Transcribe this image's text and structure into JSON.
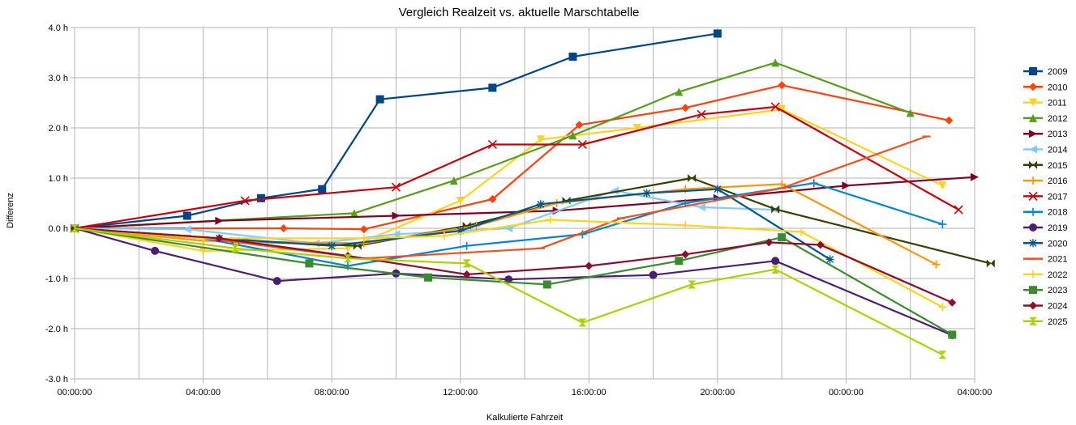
{
  "chart_data": {
    "type": "line",
    "title": "Vergleich Realzeit vs. aktuelle Marschtabelle",
    "xlabel": "Kalkulierte Fahrzeit",
    "ylabel": "Differenz",
    "x_unit": "hours",
    "xlim": [
      0,
      28
    ],
    "ylim": [
      -3,
      4
    ],
    "x_ticks": [
      {
        "value": 0,
        "label": "00:00:00"
      },
      {
        "value": 4,
        "label": "04:00:00"
      },
      {
        "value": 8,
        "label": "08:00:00"
      },
      {
        "value": 12,
        "label": "12:00:00"
      },
      {
        "value": 16,
        "label": "16:00:00"
      },
      {
        "value": 20,
        "label": "20:00:00"
      },
      {
        "value": 24,
        "label": "00:00:00"
      },
      {
        "value": 28,
        "label": "04:00:00"
      }
    ],
    "y_ticks": [
      {
        "value": 4,
        "label": "4.0 h"
      },
      {
        "value": 3,
        "label": "3.0 h"
      },
      {
        "value": 2,
        "label": "2.0 h"
      },
      {
        "value": 1,
        "label": "1.0 h"
      },
      {
        "value": 0,
        "label": "0.0 h"
      },
      {
        "value": -1,
        "label": "-1.0 h"
      },
      {
        "value": -2,
        "label": "-2.0 h"
      },
      {
        "value": -3,
        "label": "-3.0 h"
      }
    ],
    "grid": true,
    "legend_position": "right",
    "series": [
      {
        "name": "2009",
        "color": "#004586",
        "marker": "square",
        "x": [
          0,
          3.5,
          5.8,
          7.7,
          9.5,
          13.0,
          15.5,
          20.0
        ],
        "y": [
          0,
          0.25,
          0.6,
          0.78,
          2.57,
          2.8,
          3.42,
          3.88
        ]
      },
      {
        "name": "2010",
        "color": "#ff420e",
        "marker": "diamond",
        "x": [
          0,
          6.5,
          9.0,
          13.0,
          15.7,
          19.0,
          22.0,
          27.2
        ],
        "y": [
          0,
          0.0,
          -0.02,
          0.58,
          2.06,
          2.4,
          2.85,
          2.15
        ]
      },
      {
        "name": "2011",
        "color": "#ffd320",
        "marker": "triangle-down",
        "x": [
          0,
          4.0,
          8.5,
          12.0,
          14.5,
          17.5,
          22.0,
          27.0
        ],
        "y": [
          0,
          -0.45,
          -0.4,
          0.55,
          1.77,
          2.0,
          2.37,
          0.85
        ]
      },
      {
        "name": "2012",
        "color": "#579d1c",
        "marker": "triangle-up",
        "x": [
          0,
          8.7,
          11.8,
          15.5,
          18.8,
          21.8,
          26.0
        ],
        "y": [
          0,
          0.3,
          0.95,
          1.85,
          2.72,
          3.3,
          2.3
        ]
      },
      {
        "name": "2013",
        "color": "#7e0021",
        "marker": "triangle-right",
        "x": [
          0,
          4.5,
          10.0,
          15.0,
          20.0,
          24.0,
          28.0
        ],
        "y": [
          0,
          0.15,
          0.25,
          0.35,
          0.6,
          0.85,
          1.02
        ]
      },
      {
        "name": "2014",
        "color": "#83caff",
        "marker": "triangle-left",
        "x": [
          0,
          3.5,
          7.5,
          10.0,
          13.5,
          16.8,
          19.5,
          21.8
        ],
        "y": [
          0,
          -0.02,
          -0.3,
          -0.12,
          0.0,
          0.75,
          0.42,
          0.37
        ]
      },
      {
        "name": "2015",
        "color": "#314004",
        "marker": "bowtie",
        "x": [
          0,
          5.0,
          8.8,
          12.2,
          15.3,
          19.2,
          21.8,
          28.5
        ],
        "y": [
          0,
          -0.25,
          -0.35,
          0.05,
          0.55,
          1.0,
          0.38,
          -0.7
        ]
      },
      {
        "name": "2016",
        "color": "#ff950e",
        "marker": "plus",
        "x": [
          0,
          4.0,
          9.0,
          12.5,
          15.0,
          19.0,
          22.0,
          26.8
        ],
        "y": [
          0,
          -0.25,
          -0.3,
          0.05,
          0.5,
          0.78,
          0.88,
          -0.72
        ]
      },
      {
        "name": "2017",
        "color": "#c5000b",
        "marker": "x",
        "x": [
          0,
          5.3,
          10.0,
          13.0,
          15.8,
          19.5,
          21.8,
          27.5
        ],
        "y": [
          0,
          0.55,
          0.82,
          1.67,
          1.67,
          2.27,
          2.42,
          0.37
        ]
      },
      {
        "name": "2018",
        "color": "#0084d1",
        "marker": "plus",
        "x": [
          0,
          4.0,
          8.5,
          12.2,
          15.8,
          19.0,
          23.0,
          27.0
        ],
        "y": [
          0,
          -0.2,
          -0.75,
          -0.35,
          -0.12,
          0.5,
          0.9,
          0.08
        ]
      },
      {
        "name": "2019",
        "color": "#4b1f6f",
        "marker": "circle",
        "x": [
          0,
          2.5,
          6.3,
          10.0,
          13.5,
          18.0,
          21.8,
          27.3
        ],
        "y": [
          0,
          -0.45,
          -1.05,
          -0.9,
          -1.02,
          -0.93,
          -0.65,
          -2.13
        ]
      },
      {
        "name": "2020",
        "color": "#00568a",
        "marker": "asterisk",
        "x": [
          0,
          4.5,
          8.0,
          12.0,
          14.5,
          17.8,
          20.0,
          23.5
        ],
        "y": [
          0,
          -0.2,
          -0.35,
          -0.05,
          0.48,
          0.7,
          0.78,
          -0.62
        ]
      },
      {
        "name": "2021",
        "color": "#f24f1c",
        "marker": "dash",
        "x": [
          0,
          3.5,
          9.0,
          14.5,
          17.0,
          22.0,
          26.5
        ],
        "y": [
          0,
          -0.15,
          -0.6,
          -0.4,
          0.2,
          0.8,
          1.83
        ]
      },
      {
        "name": "2022",
        "color": "#ffd320",
        "marker": "plus",
        "x": [
          0,
          4.0,
          9.0,
          11.5,
          14.8,
          19.0,
          22.6,
          27.0
        ],
        "y": [
          0,
          -0.2,
          -0.2,
          -0.15,
          0.17,
          0.06,
          -0.07,
          -1.57
        ]
      },
      {
        "name": "2023",
        "color": "#3a8b30",
        "marker": "square",
        "x": [
          0,
          7.3,
          11.0,
          14.7,
          18.8,
          22.0,
          27.3
        ],
        "y": [
          0,
          -0.7,
          -0.98,
          -1.12,
          -0.65,
          -0.18,
          -2.12
        ]
      },
      {
        "name": "2024",
        "color": "#8a0f2e",
        "marker": "diamond",
        "x": [
          0,
          4.5,
          8.5,
          12.2,
          16.0,
          19.0,
          21.6,
          23.2,
          27.3
        ],
        "y": [
          0,
          -0.2,
          -0.55,
          -0.92,
          -0.75,
          -0.52,
          -0.28,
          -0.33,
          -1.48
        ]
      },
      {
        "name": "2025",
        "color": "#aecf00",
        "marker": "hourglass",
        "x": [
          0,
          5.0,
          8.5,
          12.2,
          15.8,
          19.2,
          21.8,
          27.0
        ],
        "y": [
          0,
          -0.4,
          -0.6,
          -0.7,
          -1.88,
          -1.12,
          -0.82,
          -2.52
        ]
      }
    ]
  }
}
